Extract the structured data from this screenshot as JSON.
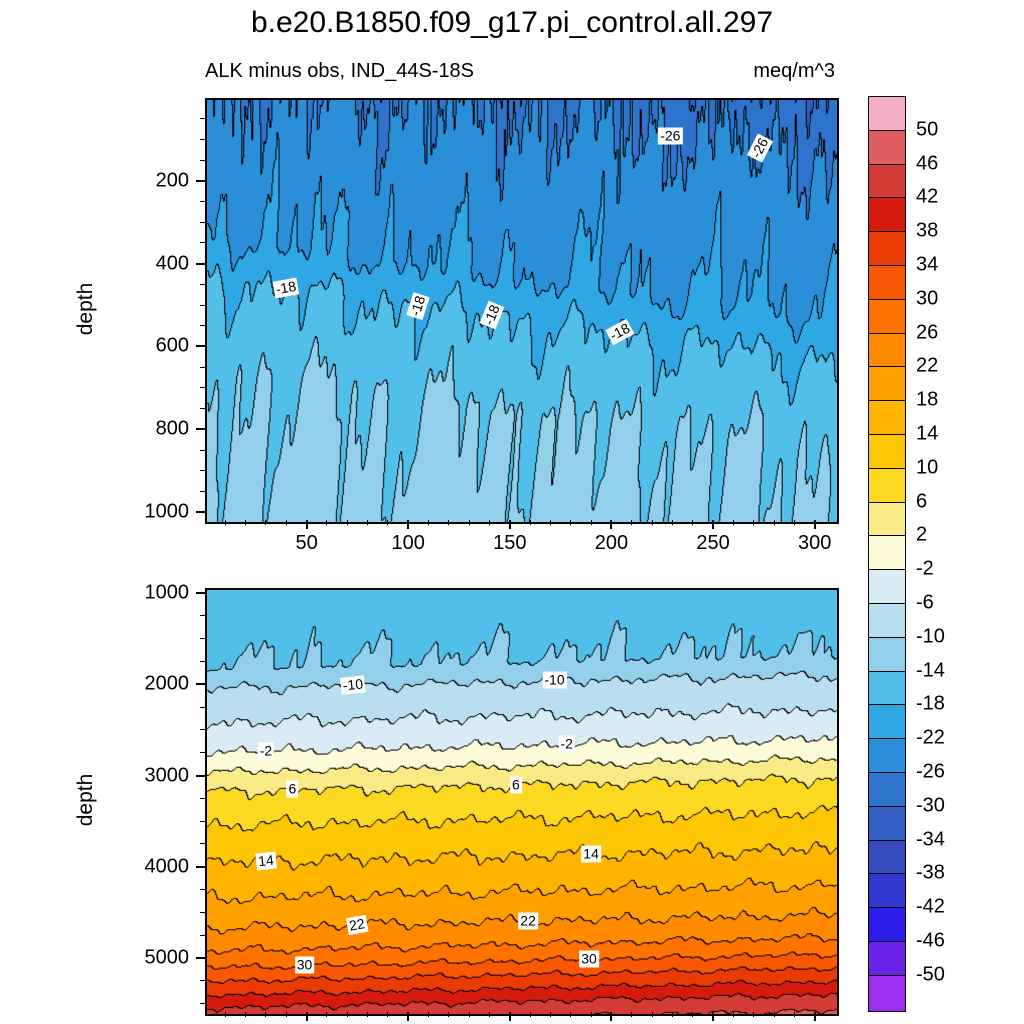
{
  "title": "b.e20.B1850.f09_g17.pi_control.all.297",
  "subtitle_left": "ALK minus obs, IND_44S-18S",
  "units": "meq/m^3",
  "colorbar": {
    "levels": [
      50,
      46,
      42,
      38,
      34,
      30,
      26,
      22,
      18,
      14,
      10,
      6,
      2,
      -2,
      -6,
      -10,
      -14,
      -18,
      -22,
      -26,
      -30,
      -34,
      -38,
      -42,
      -46,
      -50
    ],
    "colors": [
      "#f6aec5",
      "#e05c60",
      "#d33b36",
      "#d61b0e",
      "#ea3b05",
      "#f85804",
      "#ff7200",
      "#ff8a00",
      "#ffa000",
      "#ffb500",
      "#fdc706",
      "#fbd920",
      "#f8ea84",
      "#fdfbd8",
      "#d9ecf5",
      "#b8def0",
      "#92cfeb",
      "#51bfe9",
      "#2fa7e4",
      "#2a8fd8",
      "#2e74cc",
      "#335fc4",
      "#364cbe",
      "#3038cf",
      "#2b1ce8",
      "#6a22e8",
      "#9c2ff0"
    ]
  },
  "chart_data": [
    {
      "id": "upper",
      "type": "heatmap",
      "ylabel": "depth",
      "x_range": [
        0,
        310
      ],
      "depth_range": [
        0,
        1019
      ],
      "x_ticks": [
        50,
        100,
        150,
        200,
        250,
        300
      ],
      "x_minor_step": 10,
      "show_x_labels": true,
      "y_ticks": [
        200,
        400,
        600,
        800,
        1000
      ],
      "y_minor_step": 50,
      "contour_interval": 4,
      "tilt": -0.645,
      "profile": [
        [
          -300,
          -30
        ],
        [
          0,
          -25
        ],
        [
          330,
          -22
        ],
        [
          430,
          -18
        ],
        [
          660,
          -14
        ],
        [
          1500,
          -9.5
        ]
      ],
      "contour_labels": [
        {
          "text": "-26",
          "level": -26,
          "x": 272,
          "rot": -63
        },
        {
          "text": "-26",
          "level": -26,
          "x": 228,
          "rot": 0
        },
        {
          "text": "-18",
          "level": -18,
          "x": 39,
          "rot": -10
        },
        {
          "text": "-18",
          "level": -18,
          "x": 104,
          "rot": -72
        },
        {
          "text": "-18",
          "level": -18,
          "x": 140,
          "rot": -68
        },
        {
          "text": "-18",
          "level": -18,
          "x": 203,
          "rot": -28
        }
      ]
    },
    {
      "id": "lower",
      "type": "heatmap",
      "ylabel": "depth",
      "x_range": [
        0,
        310
      ],
      "depth_range": [
        945,
        5591
      ],
      "x_ticks": [
        50,
        100,
        150,
        200,
        250,
        300
      ],
      "x_minor_step": 10,
      "show_x_labels": false,
      "y_ticks": [
        1000,
        2000,
        3000,
        4000,
        5000
      ],
      "y_minor_step": 250,
      "contour_interval": 4,
      "tilt": 0.48,
      "profile": [
        [
          900,
          -16.2
        ],
        [
          1800,
          -13.8
        ],
        [
          2030,
          -9.8
        ],
        [
          2400,
          -6
        ],
        [
          2720,
          -2
        ],
        [
          2940,
          2
        ],
        [
          3150,
          6
        ],
        [
          3520,
          10
        ],
        [
          3930,
          14
        ],
        [
          4320,
          18
        ],
        [
          4650,
          22
        ],
        [
          4900,
          26
        ],
        [
          5080,
          30
        ],
        [
          5230,
          34
        ],
        [
          5380,
          38
        ],
        [
          5520,
          42
        ],
        [
          5700,
          46
        ]
      ],
      "contour_labels": [
        {
          "text": "-10",
          "level": -10,
          "x": 72,
          "rot": -6
        },
        {
          "text": "-10",
          "level": -10,
          "x": 171,
          "rot": 0
        },
        {
          "text": "-2",
          "level": -2,
          "x": 29,
          "rot": 0
        },
        {
          "text": "-2",
          "level": -2,
          "x": 177,
          "rot": 0
        },
        {
          "text": "6",
          "level": 6,
          "x": 42,
          "rot": 0
        },
        {
          "text": "6",
          "level": 6,
          "x": 152,
          "rot": 0
        },
        {
          "text": "14",
          "level": 14,
          "x": 29,
          "rot": -6
        },
        {
          "text": "14",
          "level": 14,
          "x": 189,
          "rot": 0
        },
        {
          "text": "22",
          "level": 22,
          "x": 74,
          "rot": -10
        },
        {
          "text": "22",
          "level": 22,
          "x": 158,
          "rot": 0
        },
        {
          "text": "30",
          "level": 30,
          "x": 48,
          "rot": 0
        },
        {
          "text": "30",
          "level": 30,
          "x": 188,
          "rot": 0
        }
      ]
    }
  ]
}
